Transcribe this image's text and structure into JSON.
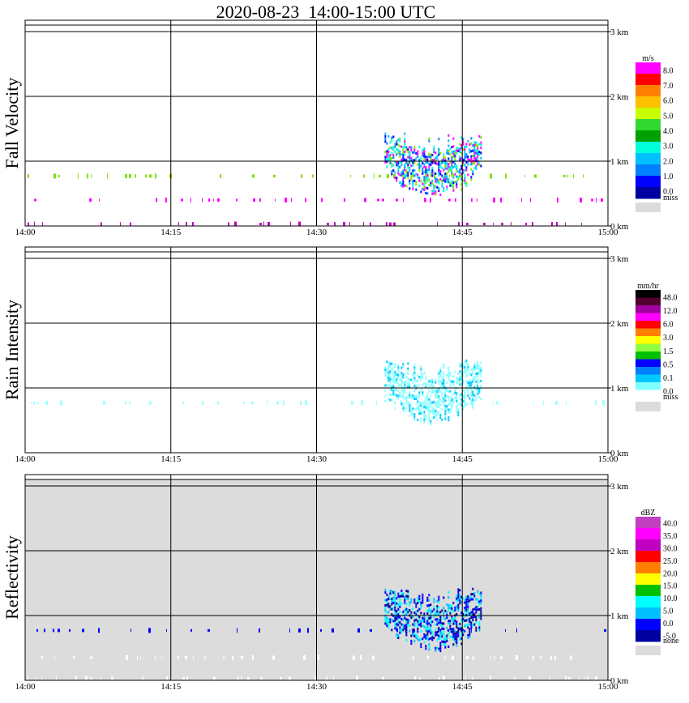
{
  "title": "2020-08-23  14:00-15:00 UTC",
  "x_ticks": [
    "14:00",
    "14:15",
    "14:30",
    "14:45",
    "15:00"
  ],
  "y_ticks": [
    "0 km",
    "1 km",
    "2 km",
    "3 km"
  ],
  "chart_data": [
    {
      "type": "heatmap",
      "ylabel": "Fall Velocity",
      "xlim": [
        "14:00",
        "15:00"
      ],
      "ylim_km": [
        0,
        3.1
      ],
      "grid": true,
      "colorbar": {
        "unit": "m/s",
        "labels": [
          "8.0",
          "7.0",
          "6.0",
          "5.0",
          "4.0",
          "3.0",
          "2.0",
          "1.0",
          "0.0"
        ],
        "colors": [
          "#ff00ff",
          "#ff0000",
          "#ff8000",
          "#ffc000",
          "#c8ff00",
          "#30d830",
          "#00a000",
          "#00ffd8",
          "#00c0ff",
          "#0080ff",
          "#0000ff",
          "#0000a0"
        ],
        "missing_label": "miss",
        "missing_color": "#dcdcdc"
      },
      "features": [
        {
          "kind": "band",
          "t_start": "14:00",
          "t_end": "15:00",
          "height_km": 0.77,
          "color": "#80e000"
        },
        {
          "kind": "band",
          "t_start": "14:00",
          "t_end": "15:00",
          "height_km": 0.4,
          "color": "#ff00ff"
        },
        {
          "kind": "band",
          "t_start": "14:00",
          "t_end": "15:00",
          "height_km": 0.03,
          "color": "#c000c0"
        },
        {
          "kind": "cell",
          "t_start": "14:37",
          "t_end": "14:47",
          "base_km": 0.45,
          "top_km": 1.45
        }
      ]
    },
    {
      "type": "heatmap",
      "ylabel": "Rain Intensity",
      "xlim": [
        "14:00",
        "15:00"
      ],
      "ylim_km": [
        0,
        3.1
      ],
      "grid": true,
      "colorbar": {
        "unit": "mm/hr",
        "labels": [
          "48.0",
          "12.0",
          "6.0",
          "3.0",
          "1.5",
          "0.5",
          "0.1",
          "0.0"
        ],
        "colors": [
          "#000000",
          "#500030",
          "#a000a0",
          "#ff00ff",
          "#ff0000",
          "#ff8000",
          "#ffff00",
          "#90ff40",
          "#00c000",
          "#0000ff",
          "#0080ff",
          "#00c8ff",
          "#80ffff",
          "#ffffff"
        ],
        "missing_label": "miss",
        "missing_color": "#dcdcdc"
      },
      "features": [
        {
          "kind": "band",
          "t_start": "14:00",
          "t_end": "15:00",
          "height_km": 0.77,
          "color": "#a0ffff"
        },
        {
          "kind": "cell",
          "t_start": "14:37",
          "t_end": "14:47",
          "base_km": 0.45,
          "top_km": 1.45
        }
      ]
    },
    {
      "type": "heatmap",
      "ylabel": "Reflectivity",
      "xlim": [
        "14:00",
        "15:00"
      ],
      "ylim_km": [
        0,
        3.1
      ],
      "grid": true,
      "colorbar": {
        "unit": "dBZ",
        "labels": [
          "40.0",
          "35.0",
          "30.0",
          "25.0",
          "20.0",
          "15.0",
          "10.0",
          "5.0",
          "0.0",
          "-5.0"
        ],
        "colors": [
          "#c040c0",
          "#ff00ff",
          "#c000c0",
          "#ff0000",
          "#ff8000",
          "#ffff00",
          "#00c000",
          "#00ffff",
          "#00c0ff",
          "#0000ff",
          "#0000a0"
        ],
        "missing_label": "none",
        "missing_color": "#dcdcdc"
      },
      "features": [
        {
          "kind": "band",
          "t_start": "14:00",
          "t_end": "15:00",
          "height_km": 0.77,
          "color": "#0000ff"
        },
        {
          "kind": "band",
          "t_start": "14:00",
          "t_end": "15:00",
          "height_km": 0.35,
          "color": "#ffffff"
        },
        {
          "kind": "band",
          "t_start": "14:00",
          "t_end": "15:00",
          "height_km": 0.03,
          "color": "#ffffff"
        },
        {
          "kind": "cell",
          "t_start": "14:37",
          "t_end": "14:47",
          "base_km": 0.45,
          "top_km": 1.45
        }
      ]
    }
  ]
}
